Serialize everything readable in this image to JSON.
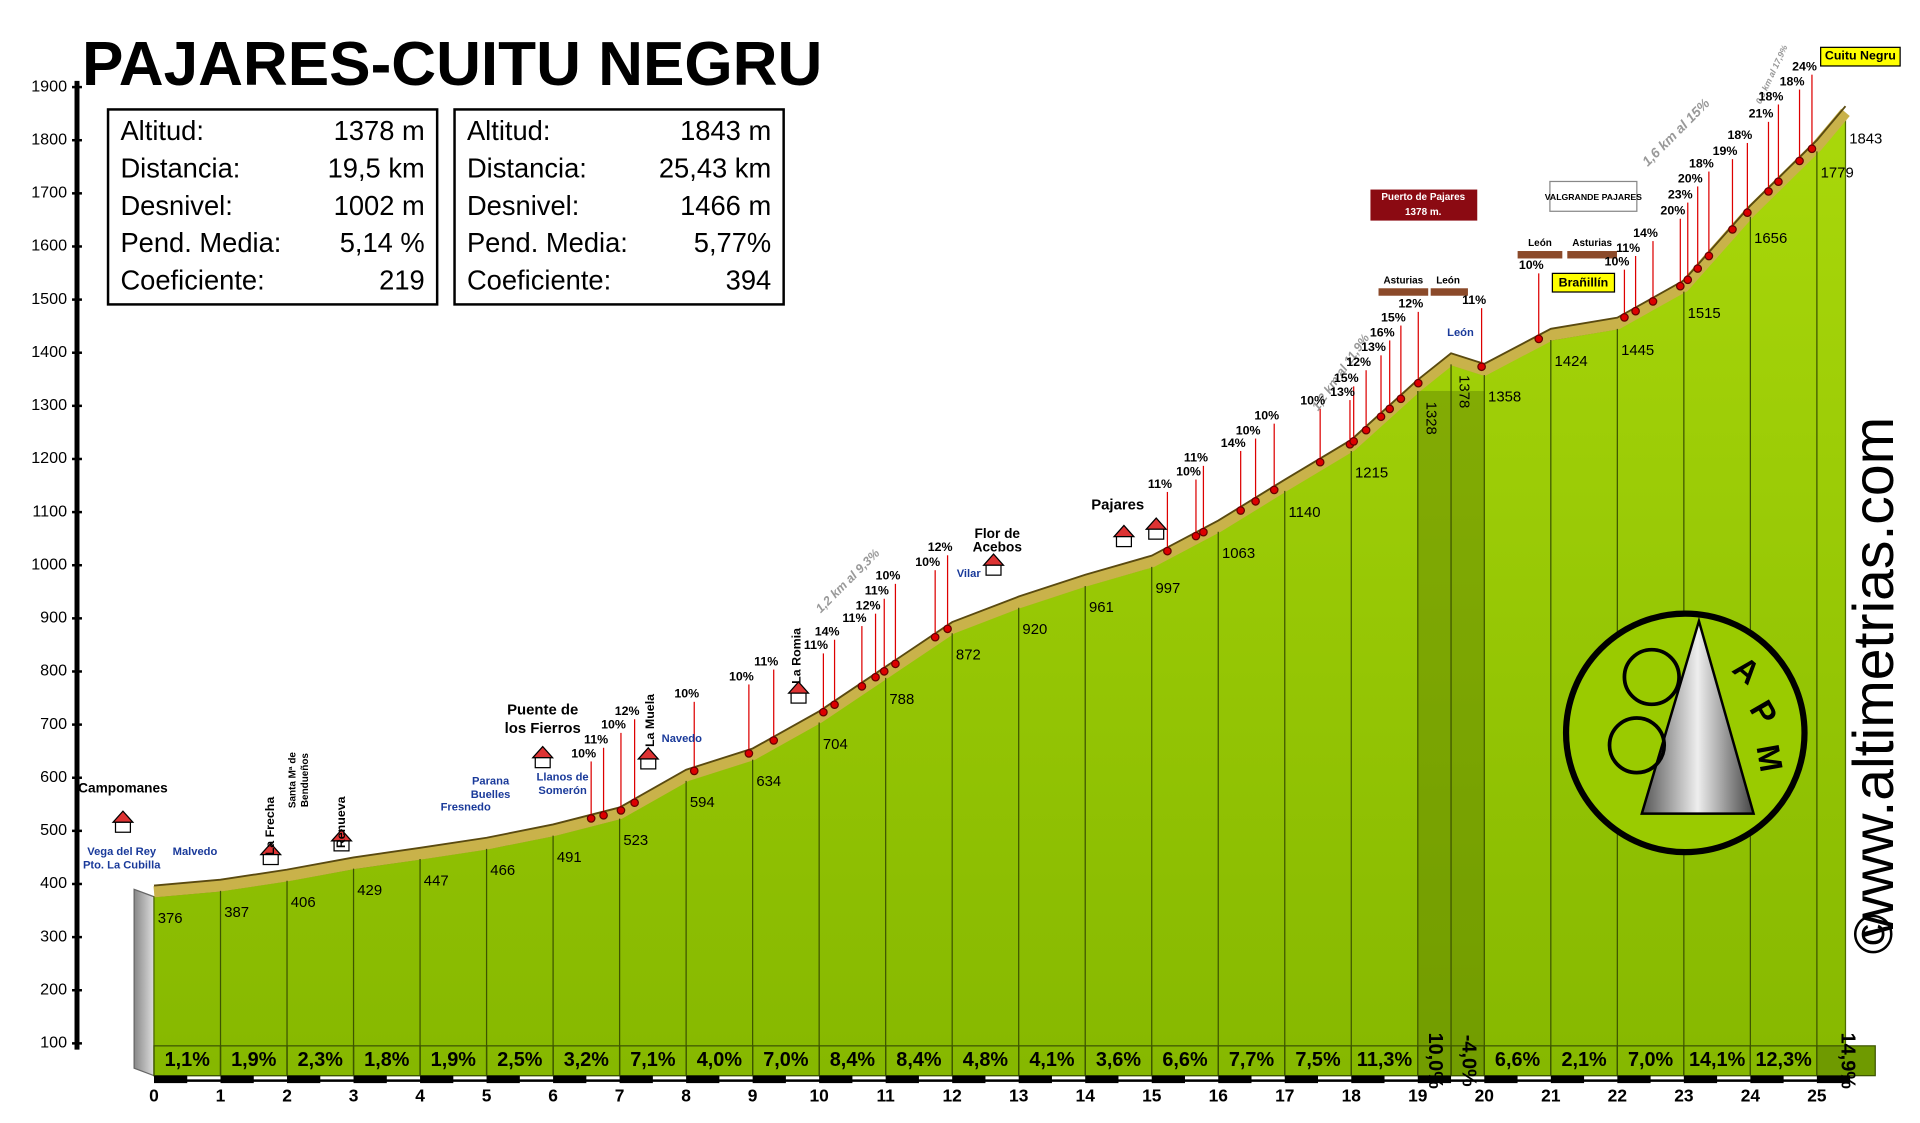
{
  "chart_data": {
    "type": "area",
    "title": "PAJARES-CUITU NEGRU",
    "x": [
      0,
      1,
      2,
      3,
      4,
      5,
      6,
      7,
      8,
      9,
      10,
      11,
      12,
      13,
      14,
      15,
      16,
      17,
      18,
      19,
      19.5,
      20,
      21,
      22,
      23,
      24,
      25,
      25.43
    ],
    "values": [
      376,
      387,
      406,
      429,
      447,
      466,
      491,
      523,
      594,
      634,
      704,
      788,
      872,
      920,
      961,
      997,
      1063,
      1140,
      1215,
      1328,
      1378,
      1358,
      1424,
      1445,
      1515,
      1656,
      1779,
      1843
    ],
    "segments": {
      "values": [
        1.1,
        1.9,
        2.3,
        1.8,
        1.9,
        2.5,
        3.2,
        7.1,
        4.0,
        7.0,
        8.4,
        8.4,
        4.8,
        4.1,
        3.6,
        6.6,
        7.7,
        7.5,
        11.3,
        10.0,
        -4.0,
        6.6,
        2.1,
        7.0,
        14.1,
        12.3,
        14.9
      ],
      "value_labels": [
        "1,1%",
        "1,9%",
        "2,3%",
        "1,8%",
        "1,9%",
        "2,5%",
        "3,2%",
        "7,1%",
        "4,0%",
        "7,0%",
        "8,4%",
        "8,4%",
        "4,8%",
        "4,1%",
        "3,6%",
        "6,6%",
        "7,7%",
        "7,5%",
        "11,3%",
        "10,0%",
        "-4,0%",
        "6,6%",
        "2,1%",
        "7,0%",
        "14,1%",
        "12,3%",
        "14,9%"
      ]
    },
    "xlim": [
      0,
      25.43
    ],
    "ylim": [
      100,
      1900
    ],
    "xticks": [
      0,
      1,
      2,
      3,
      4,
      5,
      6,
      7,
      8,
      9,
      10,
      11,
      12,
      13,
      14,
      15,
      16,
      17,
      18,
      19,
      20,
      21,
      22,
      23,
      24,
      25
    ],
    "yticks": [
      100,
      200,
      300,
      400,
      500,
      600,
      700,
      800,
      900,
      1000,
      1100,
      1200,
      1300,
      1400,
      1500,
      1600,
      1700,
      1800,
      1900
    ],
    "color": "#99cc00",
    "road_color": "#c9b24a"
  },
  "info_boxes": [
    {
      "rows": [
        [
          "Altitud:",
          "1378 m"
        ],
        [
          "Distancia:",
          "19,5 km"
        ],
        [
          "Desnivel:",
          "1002 m"
        ],
        [
          "Pend. Media:",
          "5,14 %"
        ],
        [
          "Coeficiente:",
          "219"
        ]
      ]
    },
    {
      "rows": [
        [
          "Altitud:",
          "1843 m"
        ],
        [
          "Distancia:",
          "25,43 km"
        ],
        [
          "Desnivel:",
          "1466 m"
        ],
        [
          "Pend. Media:",
          "5,77%"
        ],
        [
          "Coeficiente:",
          "394"
        ]
      ]
    }
  ],
  "annotations": [
    "Campomanes",
    "Vega del Rey",
    "Pto. La Cubilla",
    "Malvedo",
    "La Frecha",
    "Santa Mª de",
    "Bendueños",
    "Renueva",
    "Fresnedo",
    "Parana",
    "Buelles",
    "Llanos de",
    "Somerón",
    "Puente de",
    "los Fierros",
    "La Romia",
    "La Muela",
    "Navedo",
    "Vilar",
    "Flor de",
    "Acebos",
    "Pajares",
    "1,2 km al 9,3%",
    "1,2 km al 11,9%",
    "1,6 km al 15%",
    "0,3 km al 17,9%",
    "Puerto de Pajares",
    "1378 m.",
    "Asturias",
    "León",
    "León",
    "León",
    "Asturias",
    "VALGRANDE PAJARES",
    "Brañillín",
    "Cuitu Negru",
    "11%",
    "10%",
    "10%",
    "12%",
    "10%",
    "10%",
    "11%",
    "11%",
    "14%",
    "11%",
    "12%",
    "11%",
    "10%",
    "10%",
    "12%",
    "11%",
    "10%",
    "11%",
    "14%",
    "10%",
    "10%",
    "10%",
    "13%",
    "15%",
    "12%",
    "13%",
    "16%",
    "15%",
    "12%",
    "11%",
    "10%",
    "10%",
    "11%",
    "14%",
    "20%",
    "23%",
    "20%",
    "18%",
    "19%",
    "18%",
    "21%",
    "18%",
    "18%",
    "24%"
  ],
  "logo": [
    "A",
    "P",
    "M"
  ],
  "credit": "www.altimetrias.com",
  "copyright": "©"
}
